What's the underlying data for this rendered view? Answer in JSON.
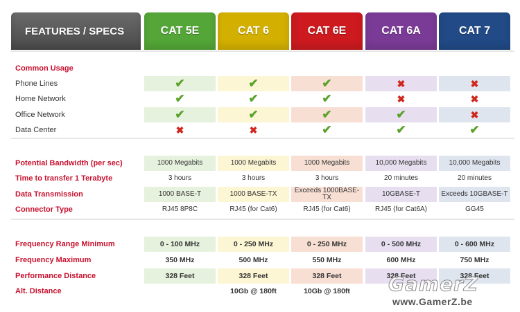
{
  "header": {
    "features": "FEATURES / SPECS",
    "columns": [
      "CAT 5E",
      "CAT 6",
      "CAT 6E",
      "CAT 6A",
      "CAT 7"
    ]
  },
  "colors": {
    "header": [
      "#53a637",
      "#d3b000",
      "#cc1a1f",
      "#7a3b96",
      "#214a86"
    ],
    "row_bg": [
      "#e7f2de",
      "#fdf6d4",
      "#f8dfd4",
      "#e7dff0",
      "#dfe5ef"
    ],
    "label_red": "#c8102e",
    "check": "#5aa32a",
    "cross": "#d0261d"
  },
  "sections": {
    "common_usage": "Common Usage"
  },
  "usage": [
    {
      "label": "Phone Lines",
      "values": [
        "check",
        "check",
        "check",
        "cross",
        "cross"
      ]
    },
    {
      "label": "Home Network",
      "values": [
        "check",
        "check",
        "check",
        "cross",
        "cross"
      ]
    },
    {
      "label": "Office Network",
      "values": [
        "check",
        "check",
        "check",
        "check",
        "cross"
      ]
    },
    {
      "label": "Data Center",
      "values": [
        "cross",
        "cross",
        "check",
        "check",
        "check"
      ]
    }
  ],
  "specs": [
    {
      "label": "Potential Bandwidth (per sec)",
      "values": [
        "1000 Megabits",
        "1000 Megabits",
        "1000 Megabits",
        "10,000 Megabits",
        "10,000 Megabits"
      ]
    },
    {
      "label": "Time to transfer 1 Terabyte",
      "values": [
        "3 hours",
        "3 hours",
        "3 hours",
        "20 minutes",
        "20 minutes"
      ]
    },
    {
      "label": "Data Transmission",
      "values": [
        "1000 BASE-T",
        "1000 BASE-TX",
        "Exceeds 1000BASE-TX",
        "10GBASE-T",
        "Exceeds 10GBASE-T"
      ]
    },
    {
      "label": "Connector Type",
      "values": [
        "RJ45 8P8C",
        "RJ45 (for Cat6)",
        "RJ45 (for Cat6)",
        "RJ45 (for Cat6A)",
        "GG45"
      ]
    }
  ],
  "freq": [
    {
      "label": "Frequency Range Minimum",
      "values": [
        "0 - 100 MHz",
        "0 - 250 MHz",
        "0 - 250 MHz",
        "0 - 500 MHz",
        "0 - 600 MHz"
      ]
    },
    {
      "label": "Frequency Maximum",
      "values": [
        "350 MHz",
        "500 MHz",
        "550 MHz",
        "600 MHz",
        "750 MHz"
      ]
    },
    {
      "label": "Performance Distance",
      "values": [
        "328 Feet",
        "328 Feet",
        "328 Feet",
        "328 Feet",
        "328 Feet"
      ]
    },
    {
      "label": "Alt. Distance",
      "values": [
        "",
        "10Gb @ 180ft",
        "10Gb @ 180ft",
        "",
        ""
      ]
    }
  ],
  "watermark": {
    "logo": "GamerZ",
    "url": "www.GamerZ.be"
  }
}
